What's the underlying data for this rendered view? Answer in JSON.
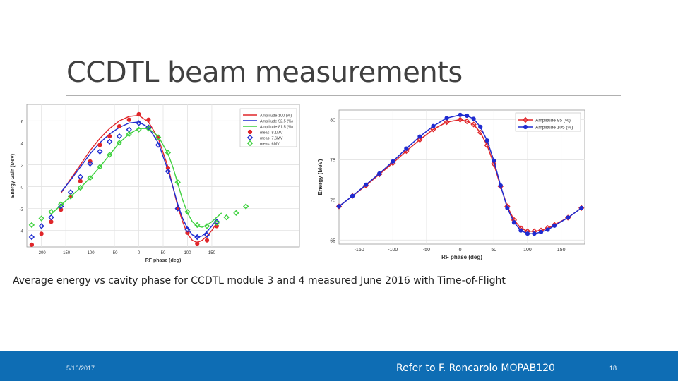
{
  "slide": {
    "title": "CCDTL beam measurements",
    "caption": "Average energy vs cavity phase for CCDTL module 3 and 4 measured  June 2016 with Time-of-Flight",
    "footer_date": "5/16/2017",
    "footer_ref": "Refer to F. Roncarolo  MOPAB120",
    "page_number": "18",
    "colors": {
      "footer_bar": "#0e6db4",
      "red": "#e0262a",
      "blue": "#1f2bd0",
      "green": "#3fd13f"
    }
  },
  "chart_data": [
    {
      "type": "line",
      "xlabel": "RF phase (deg)",
      "ylabel": "Energy Gain (MeV)",
      "xlim": [
        -230,
        330
      ],
      "ylim": [
        -5.5,
        7.5
      ],
      "xticks": [
        -200,
        -150,
        -100,
        -50,
        0,
        50,
        100,
        150
      ],
      "yticks": [
        -4,
        -2,
        0,
        2,
        4,
        6
      ],
      "grid": true,
      "legend_position": "top-right",
      "series": [
        {
          "name": "Amplitude 100 (%)",
          "kind": "line",
          "color": "#e0262a",
          "x": [
            -160,
            -140,
            -120,
            -100,
            -80,
            -60,
            -40,
            -20,
            0,
            20,
            40,
            60,
            70,
            80,
            90,
            100,
            110,
            120,
            130,
            140,
            150,
            160
          ],
          "y": [
            -0.6,
            0.7,
            2.0,
            3.3,
            4.4,
            5.3,
            6.0,
            6.4,
            6.5,
            5.9,
            4.4,
            1.8,
            0.0,
            -1.8,
            -3.2,
            -4.3,
            -4.9,
            -5.1,
            -4.9,
            -4.5,
            -4.0,
            -3.3
          ]
        },
        {
          "name": "Amplitude 92.5 (%)",
          "kind": "line",
          "color": "#1f2bd0",
          "x": [
            -160,
            -140,
            -120,
            -100,
            -80,
            -60,
            -40,
            -20,
            0,
            20,
            40,
            60,
            70,
            80,
            90,
            100,
            110,
            120,
            130,
            140,
            150,
            160
          ],
          "y": [
            -0.5,
            0.6,
            1.8,
            3.0,
            4.0,
            4.8,
            5.4,
            5.8,
            5.9,
            5.4,
            4.0,
            1.5,
            0.0,
            -1.6,
            -2.9,
            -3.8,
            -4.4,
            -4.6,
            -4.5,
            -4.1,
            -3.6,
            -3.0
          ]
        },
        {
          "name": "Amplitude 81.5 (%)",
          "kind": "line",
          "color": "#3fd13f",
          "x": [
            -180,
            -160,
            -140,
            -120,
            -100,
            -80,
            -60,
            -40,
            -20,
            0,
            20,
            40,
            60,
            70,
            80,
            90,
            100,
            110,
            120,
            130,
            140,
            150,
            160,
            170
          ],
          "y": [
            -2.5,
            -1.7,
            -0.9,
            -0.1,
            0.8,
            1.8,
            2.9,
            4.0,
            4.8,
            5.3,
            5.3,
            4.6,
            3.0,
            1.8,
            0.3,
            -1.2,
            -2.4,
            -3.2,
            -3.6,
            -3.7,
            -3.5,
            -3.2,
            -2.8,
            -2.4
          ]
        },
        {
          "name": "meas. 8.1MV",
          "kind": "markers",
          "marker": "circle",
          "color": "#e0262a",
          "x": [
            -220,
            -200,
            -180,
            -160,
            -140,
            -120,
            -100,
            -80,
            -60,
            -40,
            -20,
            0,
            20,
            40,
            60,
            80,
            100,
            120,
            140,
            160
          ],
          "y": [
            -5.3,
            -4.3,
            -3.2,
            -2.1,
            -0.9,
            0.5,
            2.3,
            3.8,
            4.6,
            5.5,
            6.1,
            6.6,
            6.1,
            4.5,
            1.7,
            -2.0,
            -4.2,
            -5.2,
            -4.9,
            -3.6
          ]
        },
        {
          "name": "meas. 7.6MV",
          "kind": "markers",
          "marker": "diamond",
          "color": "#1f2bd0",
          "x": [
            -220,
            -200,
            -180,
            -160,
            -140,
            -120,
            -100,
            -80,
            -60,
            -40,
            -20,
            0,
            20,
            40,
            60,
            80,
            100,
            120,
            140,
            160
          ],
          "y": [
            -4.6,
            -3.6,
            -2.8,
            -1.8,
            -0.5,
            0.9,
            2.1,
            3.2,
            4.1,
            4.6,
            5.2,
            5.8,
            5.4,
            3.8,
            1.4,
            -2.0,
            -3.9,
            -4.6,
            -4.4,
            -3.2
          ]
        },
        {
          "name": "meas. 6MV",
          "kind": "markers",
          "marker": "diamond",
          "color": "#3fd13f",
          "x": [
            -220,
            -200,
            -180,
            -160,
            -140,
            -120,
            -100,
            -80,
            -60,
            -40,
            -20,
            0,
            20,
            40,
            60,
            80,
            100,
            120,
            140,
            160,
            180,
            200,
            220
          ],
          "y": [
            -3.5,
            -2.9,
            -2.3,
            -1.6,
            -0.9,
            -0.1,
            0.8,
            1.8,
            2.9,
            4.0,
            4.8,
            5.2,
            5.3,
            4.5,
            3.1,
            0.4,
            -2.3,
            -3.5,
            -3.6,
            -3.3,
            -2.8,
            -2.4,
            -1.8
          ]
        }
      ]
    },
    {
      "type": "line",
      "xlabel": "RF phase (deg)",
      "ylabel": "Energy (MeV)",
      "xlim": [
        -180,
        185
      ],
      "ylim": [
        64.5,
        81.2
      ],
      "xticks": [
        -150,
        -100,
        -50,
        0,
        50,
        100,
        150
      ],
      "yticks": [
        65,
        70,
        75,
        80
      ],
      "grid": true,
      "legend_position": "top-right",
      "series": [
        {
          "name": "Amplitude 95 (%)",
          "kind": "line+markers",
          "marker": "diamond",
          "color": "#e0262a",
          "x": [
            -180,
            -160,
            -140,
            -120,
            -100,
            -80,
            -60,
            -40,
            -20,
            0,
            10,
            20,
            30,
            40,
            50,
            60,
            70,
            80,
            90,
            100,
            110,
            120,
            130,
            140,
            160,
            180
          ],
          "y": [
            69.2,
            70.5,
            71.8,
            73.2,
            74.6,
            76.1,
            77.5,
            78.8,
            79.7,
            80.0,
            79.8,
            79.4,
            78.4,
            76.8,
            74.5,
            71.7,
            69.2,
            67.5,
            66.5,
            66.1,
            66.1,
            66.2,
            66.5,
            66.9,
            67.8,
            69.0
          ]
        },
        {
          "name": "Amplitude 105 (%)",
          "kind": "line+markers",
          "marker": "circle",
          "color": "#1f2bd0",
          "x": [
            -180,
            -160,
            -140,
            -120,
            -100,
            -80,
            -60,
            -40,
            -20,
            0,
            10,
            20,
            30,
            40,
            50,
            60,
            70,
            80,
            90,
            100,
            110,
            120,
            130,
            140,
            160,
            180
          ],
          "y": [
            69.2,
            70.5,
            71.9,
            73.3,
            74.8,
            76.4,
            77.9,
            79.2,
            80.2,
            80.6,
            80.5,
            80.1,
            79.1,
            77.4,
            74.9,
            71.8,
            69.0,
            67.2,
            66.2,
            65.8,
            65.8,
            66.0,
            66.3,
            66.8,
            67.8,
            69.0
          ]
        }
      ]
    }
  ]
}
